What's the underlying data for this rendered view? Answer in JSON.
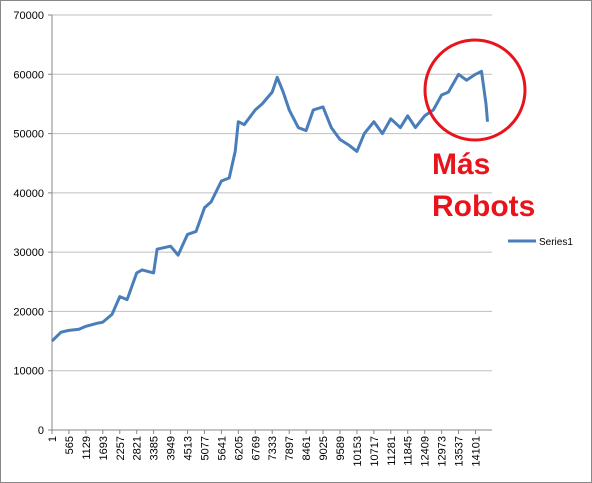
{
  "chart_data": {
    "type": "line",
    "x": [
      1,
      300,
      565,
      900,
      1129,
      1500,
      1693,
      2000,
      2257,
      2500,
      2821,
      3000,
      3385,
      3500,
      3949,
      4200,
      4513,
      4800,
      5077,
      5300,
      5641,
      5900,
      6100,
      6205,
      6400,
      6769,
      7000,
      7333,
      7500,
      7700,
      7897,
      8200,
      8461,
      8700,
      9025,
      9300,
      9589,
      9900,
      10153,
      10400,
      10717,
      11000,
      11281,
      11600,
      11845,
      12100,
      12409,
      12700,
      12973,
      13200,
      13537,
      13800,
      14101,
      14300,
      14450,
      14500
    ],
    "series": [
      {
        "name": "Series1",
        "color": "#4a7ebb",
        "values": [
          15000,
          16500,
          16800,
          17000,
          17500,
          18000,
          18200,
          19500,
          22500,
          22000,
          26500,
          27000,
          26500,
          30500,
          31000,
          29500,
          33000,
          33500,
          37500,
          38500,
          42000,
          42500,
          47000,
          52000,
          51500,
          54000,
          55000,
          57000,
          59500,
          57000,
          54000,
          51000,
          50500,
          54000,
          54500,
          51000,
          49000,
          48000,
          47000,
          50000,
          52000,
          50000,
          52500,
          51000,
          53000,
          51000,
          53000,
          54000,
          56500,
          57000,
          60000,
          59000,
          60000,
          60500,
          55000,
          52000
        ]
      }
    ],
    "xlim": [
      1,
      14650
    ],
    "xticks": [
      1,
      565,
      1129,
      1693,
      2257,
      2821,
      3385,
      3949,
      4513,
      5077,
      5641,
      6205,
      6769,
      7333,
      7897,
      8461,
      9025,
      9589,
      10153,
      10717,
      11281,
      11845,
      12409,
      12973,
      13537,
      14101
    ],
    "ylim": [
      0,
      70000
    ],
    "yticks": [
      0,
      10000,
      20000,
      30000,
      40000,
      50000,
      60000,
      70000
    ],
    "grid": true,
    "legend": "right",
    "annotation": {
      "lines": [
        "Más",
        "Robots"
      ],
      "color": "#e8141c"
    }
  }
}
